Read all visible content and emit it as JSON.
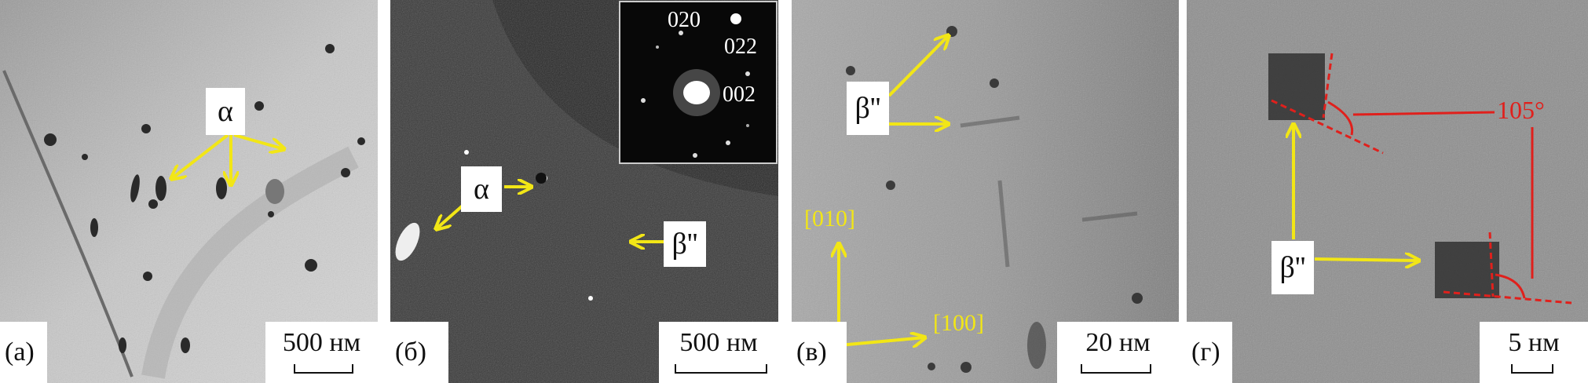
{
  "figure": {
    "panels": [
      {
        "label": "(а)",
        "scale": "500 нм",
        "annotations": {
          "alpha": "α"
        }
      },
      {
        "label": "(б)",
        "scale": "500 нм",
        "annotations": {
          "alpha": "α",
          "beta": "β''"
        },
        "inset": {
          "reflections": [
            "020",
            "022",
            "002"
          ]
        }
      },
      {
        "label": "(в)",
        "scale": "20 нм",
        "annotations": {
          "beta": "β''",
          "dir_010": "[010]",
          "dir_100": "[100]"
        }
      },
      {
        "label": "(г)",
        "scale": "5 нм",
        "annotations": {
          "beta": "β''",
          "angle": "105°"
        }
      }
    ],
    "colors": {
      "arrow": "#f2e616",
      "angle_marks": "#e0201c"
    }
  }
}
